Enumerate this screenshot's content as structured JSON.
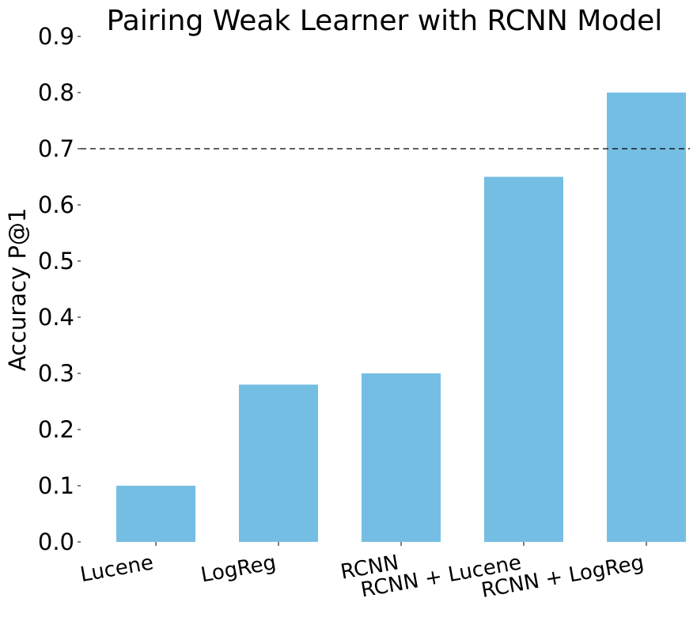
{
  "chart_data": {
    "type": "bar",
    "title": "Pairing Weak Learner with RCNN Model",
    "xlabel": "",
    "ylabel": "Accuracy P@1",
    "categories": [
      "Lucene",
      "LogReg",
      "RCNN",
      "RCNN + Lucene",
      "RCNN + LogReg"
    ],
    "values": [
      0.1,
      0.28,
      0.3,
      0.65,
      0.8
    ],
    "ylim": [
      0.0,
      0.9
    ],
    "yticks": [
      "0.0",
      "0.1",
      "0.2",
      "0.3",
      "0.4",
      "0.5",
      "0.6",
      "0.7",
      "0.8",
      "0.9"
    ],
    "reference_line": {
      "y": 0.7,
      "style": "dashed"
    },
    "bar_color": "#75bee3",
    "grid": false
  }
}
